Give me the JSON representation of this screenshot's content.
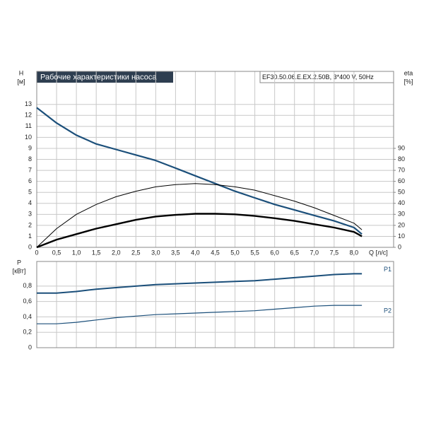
{
  "chart_data": [
    {
      "type": "line",
      "title": "Рабочие характеристики насоса",
      "subtitle": "EF30.50.06.E.EX.2.50B, 3*400 V, 50Hz",
      "ylabel": "H",
      "yunit": "[м]",
      "y2label": "eta",
      "y2unit": "[%]",
      "xlabel": "Q [л/с]",
      "x": [
        0,
        0.5,
        1.0,
        1.5,
        2.0,
        2.5,
        3.0,
        3.5,
        4.0,
        4.5,
        5.0,
        5.5,
        6.0,
        6.5,
        7.0,
        7.5,
        8.0,
        8.2
      ],
      "xlim": [
        0,
        9
      ],
      "xticks": [
        0,
        {
          "value": 0.5,
          "label": "0,5"
        },
        {
          "value": 1,
          "label": "1,0"
        },
        {
          "value": 1.5,
          "label": "1,5"
        },
        {
          "value": 2,
          "label": "2,0"
        },
        {
          "value": 2.5,
          "label": "2,5"
        },
        {
          "value": 3,
          "label": "3,0"
        },
        {
          "value": 3.5,
          "label": "3,5"
        },
        {
          "value": 4,
          "label": "4,0"
        },
        {
          "value": 4.5,
          "label": "4,5"
        },
        {
          "value": 5,
          "label": "5,0"
        },
        {
          "value": 5.5,
          "label": "5,5"
        },
        {
          "value": 6,
          "label": "6,0"
        },
        {
          "value": 6.5,
          "label": "6,5"
        },
        {
          "value": 7,
          "label": "7,0"
        },
        {
          "value": 7.5,
          "label": "7,5"
        },
        {
          "value": 8,
          "label": "8,0"
        }
      ],
      "ylim": [
        0,
        16
      ],
      "yticks": [
        0,
        1,
        2,
        3,
        4,
        5,
        6,
        7,
        8,
        9,
        10,
        11,
        12,
        13
      ],
      "y2lim": [
        0,
        160
      ],
      "y2ticks": [
        0,
        10,
        20,
        30,
        40,
        50,
        60,
        70,
        80,
        90
      ],
      "grid": true,
      "series": [
        {
          "color": "#1b4f7a",
          "width": 2.2,
          "values": [
            12.7,
            11.3,
            10.2,
            9.4,
            8.9,
            8.4,
            7.9,
            7.2,
            6.5,
            5.8,
            5.1,
            4.5,
            3.9,
            3.4,
            2.9,
            2.4,
            1.8,
            1.2
          ]
        },
        {
          "color": "#000000",
          "width": 1,
          "axis": "y2",
          "values": [
            0,
            17,
            30,
            39,
            46,
            51,
            55,
            57,
            58,
            57,
            55,
            52,
            47,
            42,
            36,
            29,
            22,
            16
          ]
        },
        {
          "color": "#000000",
          "width": 2.4,
          "axis": "y2",
          "values": [
            0,
            7,
            12,
            17,
            21,
            25,
            28,
            29.5,
            30.5,
            30.5,
            30,
            28.5,
            26.5,
            24,
            21,
            18,
            14,
            10
          ]
        }
      ]
    },
    {
      "type": "line",
      "ylabel": "P",
      "yunit": "[кВт]",
      "x": [
        0,
        0.5,
        1.0,
        1.5,
        2.0,
        2.5,
        3.0,
        3.5,
        4.0,
        4.5,
        5.0,
        5.5,
        6.0,
        6.5,
        7.0,
        7.5,
        8.0,
        8.2
      ],
      "xlim": [
        0,
        9
      ],
      "xticks": [
        0,
        0.5,
        1,
        1.5,
        2,
        2.5,
        3,
        3.5,
        4,
        4.5,
        5,
        5.5,
        6,
        6.5,
        7,
        7.5,
        8
      ],
      "ylim": [
        0,
        1.12
      ],
      "yticks": [
        0,
        {
          "value": 0.2,
          "label": "0,2"
        },
        {
          "value": 0.4,
          "label": "0,4"
        },
        {
          "value": 0.6,
          "label": "0,6"
        },
        {
          "value": 0.8,
          "label": "0,8"
        }
      ],
      "grid": true,
      "series": [
        {
          "name": "P1",
          "color": "#1b4f7a",
          "width": 2,
          "values": [
            0.71,
            0.71,
            0.73,
            0.76,
            0.78,
            0.8,
            0.82,
            0.83,
            0.84,
            0.85,
            0.86,
            0.87,
            0.89,
            0.91,
            0.93,
            0.95,
            0.96,
            0.96
          ]
        },
        {
          "name": "P2",
          "color": "#1b4f7a",
          "width": 1.2,
          "values": [
            0.31,
            0.31,
            0.33,
            0.36,
            0.39,
            0.41,
            0.43,
            0.44,
            0.45,
            0.46,
            0.47,
            0.48,
            0.5,
            0.52,
            0.54,
            0.55,
            0.55,
            0.55
          ]
        }
      ]
    }
  ]
}
